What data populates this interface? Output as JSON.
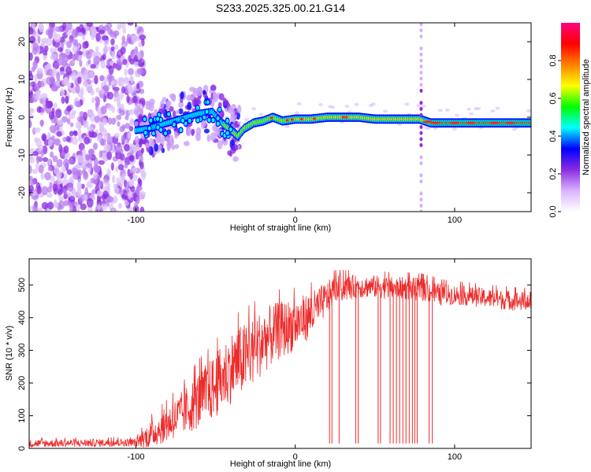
{
  "title": "S233.2025.325.00.21.G14",
  "chart_data": [
    {
      "type": "heatmap",
      "name": "spectrogram",
      "xlabel": "Height of straight line (km)",
      "ylabel": "Frequency (Hz)",
      "xlim": [
        -167,
        148
      ],
      "ylim": [
        -25,
        25
      ],
      "xticks": [
        -100,
        0,
        100
      ],
      "yticks": [
        -20,
        -10,
        0,
        10,
        20
      ],
      "colorbar": {
        "label": "Normalized spectral amplitude",
        "range": [
          0,
          1
        ],
        "ticks": [
          "0.0",
          "0.2",
          "0.4",
          "0.6",
          "0.8"
        ],
        "tick_values": [
          0.0,
          0.2,
          0.4,
          0.6,
          0.8
        ],
        "colors": [
          "#ffffff",
          "#d9b3ff",
          "#8a2be2",
          "#0000ff",
          "#00ffff",
          "#00ff00",
          "#ffff00",
          "#ff8000",
          "#ff0000",
          "#ff0080"
        ]
      },
      "ridge": {
        "x": [
          -100,
          -92,
          -84,
          -76,
          -68,
          -60,
          -52,
          -46,
          -40,
          -36,
          -32,
          -26,
          -20,
          -14,
          -8,
          0,
          10,
          20,
          30,
          40,
          50,
          60,
          70,
          78,
          85,
          95,
          105,
          115,
          125,
          135,
          148
        ],
        "freq": [
          -3.5,
          -3,
          -2,
          -1,
          0,
          1,
          1.5,
          -1.5,
          -3.5,
          -5,
          -3,
          -1.5,
          -1,
          0,
          -1,
          -0.5,
          -0.5,
          0,
          0,
          0,
          -0.5,
          -0.5,
          -0.5,
          -0.5,
          -1.5,
          -1.5,
          -1.5,
          -1.5,
          -1.5,
          -1.5,
          -1.5
        ]
      }
    },
    {
      "type": "line",
      "name": "snr",
      "xlabel": "Height of straight line (km)",
      "ylabel": "SNR (10 * v/v)",
      "xlim": [
        -167,
        148
      ],
      "ylim": [
        0,
        580
      ],
      "xticks": [
        -100,
        0,
        100
      ],
      "yticks": [
        0,
        100,
        200,
        300,
        400,
        500
      ],
      "color": "#ee2a2a",
      "envelope": {
        "x": [
          -167,
          -100,
          -92,
          -80,
          -70,
          -60,
          -50,
          -40,
          -30,
          -20,
          -10,
          0,
          10,
          20,
          25,
          30,
          40,
          50,
          60,
          70,
          80,
          85,
          90,
          100,
          110,
          120,
          130,
          140,
          148
        ],
        "mean": [
          15,
          18,
          40,
          75,
          110,
          150,
          190,
          250,
          280,
          330,
          360,
          380,
          410,
          460,
          490,
          490,
          495,
          495,
          490,
          490,
          485,
          480,
          470,
          470,
          465,
          460,
          455,
          450,
          450
        ],
        "jitter": [
          12,
          12,
          40,
          55,
          70,
          90,
          100,
          110,
          110,
          100,
          90,
          80,
          70,
          50,
          40,
          40,
          35,
          35,
          35,
          35,
          35,
          35,
          35,
          30,
          30,
          30,
          30,
          30,
          30
        ]
      },
      "dropouts_x": [
        21.5,
        23,
        27.5,
        38,
        39.5,
        52,
        53.5,
        59.5,
        61.5,
        63.5,
        65.5,
        67.5,
        69.5,
        71.5,
        73.5,
        75,
        76.5,
        84,
        86
      ]
    }
  ]
}
